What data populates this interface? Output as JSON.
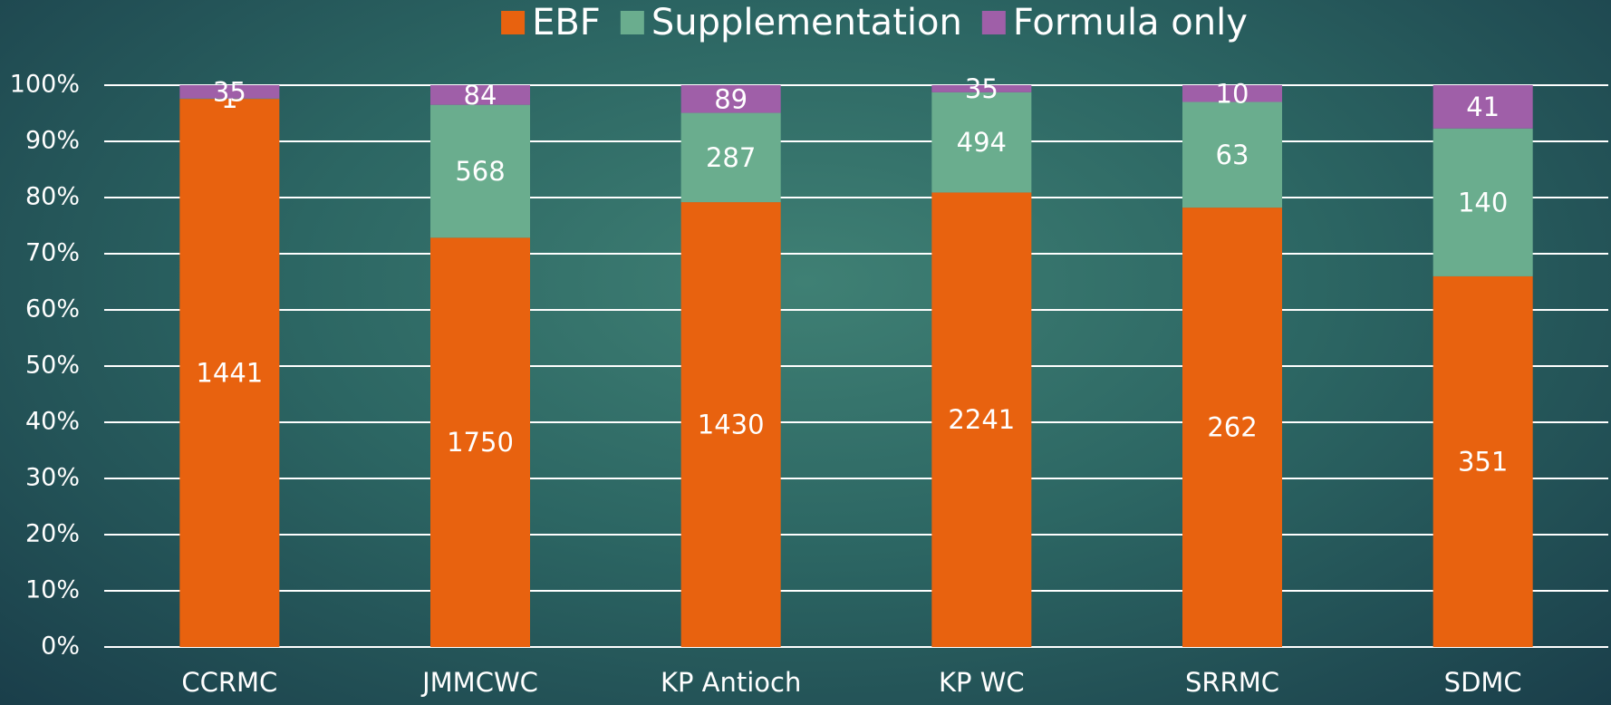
{
  "chart_data": {
    "type": "bar",
    "stacking": "percent",
    "categories": [
      "CCRMC",
      "JMMCWC",
      "KP Antioch",
      "KP WC",
      "SRRMC",
      "SDMC"
    ],
    "series": [
      {
        "name": "EBF",
        "color": "#e8620f",
        "values": [
          1441,
          1750,
          1430,
          2241,
          262,
          351
        ]
      },
      {
        "name": "Supplementation",
        "color": "#6aad8e",
        "values": [
          1,
          568,
          287,
          494,
          63,
          140
        ]
      },
      {
        "name": "Formula only",
        "color": "#9f5fa8",
        "values": [
          35,
          84,
          89,
          35,
          10,
          41
        ]
      }
    ],
    "ylim": [
      0,
      100
    ],
    "yticks": [
      {
        "value": 0,
        "label": "0%"
      },
      {
        "value": 10,
        "label": "10%"
      },
      {
        "value": 20,
        "label": "20%"
      },
      {
        "value": 30,
        "label": "30%"
      },
      {
        "value": 40,
        "label": "40%"
      },
      {
        "value": 50,
        "label": "50%"
      },
      {
        "value": 60,
        "label": "60%"
      },
      {
        "value": 70,
        "label": "70%"
      },
      {
        "value": 80,
        "label": "80%"
      },
      {
        "value": 90,
        "label": "90%"
      },
      {
        "value": 100,
        "label": "100%"
      }
    ],
    "grid": true,
    "legend": "top"
  }
}
